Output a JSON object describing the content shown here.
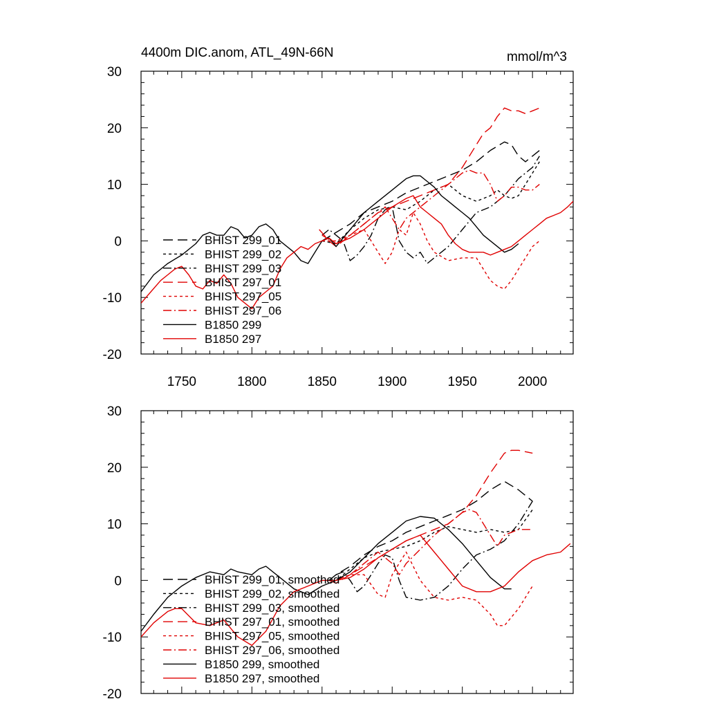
{
  "chart_data": [
    {
      "type": "line",
      "title": "4400m DIC.anom, ATL_49N-66N",
      "units": "mmol/m^3",
      "xlabel": "",
      "ylabel": "",
      "xlim": [
        1721,
        2029
      ],
      "ylim": [
        -20,
        30
      ],
      "xticks": [
        1750,
        1800,
        1850,
        1900,
        1950,
        2000
      ],
      "yticks": [
        30,
        20,
        10,
        0,
        -10,
        -20
      ],
      "legend_position": "left",
      "series": [
        {
          "name": "BHIST 299_01",
          "color": "#000000",
          "dash": "14 7",
          "x": [
            1850,
            1860,
            1870,
            1880,
            1890,
            1900,
            1910,
            1920,
            1930,
            1940,
            1950,
            1960,
            1970,
            1980,
            1985,
            1990,
            1995,
            2000,
            2005
          ],
          "y": [
            0,
            1.5,
            3,
            5,
            6,
            7,
            8.5,
            9.5,
            10.5,
            11.5,
            12.5,
            14,
            16,
            17.5,
            17,
            15,
            14,
            15,
            16
          ]
        },
        {
          "name": "BHIST 299_02",
          "color": "#000000",
          "dash": "4 4",
          "x": [
            1850,
            1860,
            1870,
            1880,
            1890,
            1900,
            1910,
            1920,
            1930,
            1940,
            1950,
            1960,
            1970,
            1975,
            1980,
            1985,
            1990,
            1995,
            2000,
            2005
          ],
          "y": [
            0,
            -0.5,
            2,
            4,
            5.5,
            6,
            5.5,
            7,
            9,
            10,
            8,
            7,
            8,
            9,
            8,
            7.5,
            8,
            10,
            12,
            14
          ]
        },
        {
          "name": "BHIST 299_03",
          "color": "#000000",
          "dash": "12 4 2 4",
          "x": [
            1850,
            1855,
            1860,
            1865,
            1870,
            1875,
            1880,
            1885,
            1890,
            1895,
            1900,
            1905,
            1910,
            1915,
            1920,
            1925,
            1930,
            1940,
            1950,
            1960,
            1970,
            1980,
            1990,
            2000,
            2005
          ],
          "y": [
            1,
            2,
            1,
            0,
            -3.5,
            -2.5,
            -1,
            1,
            4,
            5.5,
            6,
            0,
            -2,
            -3,
            -2,
            -4,
            -3,
            -1,
            2,
            5,
            6,
            8,
            11,
            13,
            15
          ]
        },
        {
          "name": "BHIST 297_01",
          "color": "#e00000",
          "dash": "14 7",
          "x": [
            1848,
            1855,
            1860,
            1870,
            1880,
            1890,
            1900,
            1910,
            1920,
            1930,
            1940,
            1950,
            1960,
            1965,
            1970,
            1975,
            1980,
            1985,
            1990,
            1995,
            2000,
            2005
          ],
          "y": [
            2,
            0,
            -1,
            1,
            3,
            5,
            6,
            7,
            8,
            9,
            10,
            13,
            17,
            19,
            20,
            22,
            23.5,
            23,
            23,
            22.5,
            23,
            23.5
          ]
        },
        {
          "name": "BHIST 297_05",
          "color": "#e00000",
          "dash": "4 4",
          "x": [
            1850,
            1860,
            1870,
            1880,
            1890,
            1895,
            1900,
            1905,
            1910,
            1915,
            1920,
            1925,
            1930,
            1940,
            1950,
            1960,
            1965,
            1970,
            1975,
            1980,
            1985,
            1990,
            1995,
            2000,
            2005
          ],
          "y": [
            0,
            0,
            1,
            2,
            -2,
            -4,
            -2,
            2,
            1,
            5,
            3,
            0,
            -2,
            -3.5,
            -3,
            -3,
            -5,
            -7,
            -8,
            -8.5,
            -7,
            -5,
            -3,
            -1,
            0
          ]
        },
        {
          "name": "BHIST 297_06",
          "color": "#e00000",
          "dash": "12 4 2 4",
          "x": [
            1850,
            1860,
            1870,
            1880,
            1890,
            1895,
            1900,
            1905,
            1910,
            1920,
            1930,
            1940,
            1950,
            1955,
            1960,
            1965,
            1970,
            1975,
            1980,
            1985,
            1990,
            1995,
            2000,
            2005
          ],
          "y": [
            1,
            -0.5,
            1,
            3,
            5,
            6,
            4,
            2,
            4,
            6,
            8,
            10,
            12,
            12.5,
            12,
            12,
            10,
            7,
            8,
            9.5,
            9.5,
            9,
            9,
            10
          ]
        },
        {
          "name": "B1850 299",
          "color": "#000000",
          "dash": "",
          "x": [
            1721,
            1730,
            1740,
            1750,
            1760,
            1765,
            1770,
            1775,
            1780,
            1785,
            1790,
            1795,
            1800,
            1805,
            1810,
            1815,
            1820,
            1825,
            1830,
            1835,
            1840,
            1845,
            1850,
            1855,
            1860,
            1865,
            1870,
            1880,
            1890,
            1900,
            1905,
            1910,
            1915,
            1920,
            1925,
            1930,
            1935,
            1940,
            1945,
            1950,
            1955,
            1960,
            1965,
            1970,
            1975,
            1980,
            1985,
            1990
          ],
          "y": [
            -9,
            -6,
            -4,
            -2.5,
            -0.5,
            1,
            1.5,
            1,
            1,
            2.5,
            2,
            0.5,
            1,
            2.5,
            3,
            2,
            0,
            -1,
            -2,
            -3.5,
            -4,
            -2,
            0,
            0.5,
            -1,
            0.5,
            2,
            5,
            7,
            9,
            10,
            11,
            11.5,
            11.5,
            10.5,
            9.5,
            8,
            7,
            6,
            5,
            4,
            2.5,
            1,
            0,
            -1,
            -2,
            -1.5,
            -0.5
          ]
        },
        {
          "name": "B1850 297",
          "color": "#e00000",
          "dash": "",
          "x": [
            1721,
            1728,
            1735,
            1740,
            1745,
            1750,
            1755,
            1760,
            1765,
            1770,
            1775,
            1780,
            1785,
            1790,
            1795,
            1800,
            1805,
            1810,
            1815,
            1820,
            1825,
            1830,
            1835,
            1840,
            1845,
            1850,
            1855,
            1860,
            1870,
            1880,
            1890,
            1900,
            1910,
            1915,
            1920,
            1925,
            1930,
            1935,
            1940,
            1945,
            1950,
            1955,
            1960,
            1965,
            1970,
            1975,
            1980,
            1985,
            1990,
            1995,
            2000,
            2005,
            2010,
            2015,
            2020,
            2025,
            2029
          ],
          "y": [
            -11,
            -9,
            -7,
            -6,
            -5,
            -4.5,
            -6,
            -8,
            -8.5,
            -7,
            -7.5,
            -6,
            -7.5,
            -10,
            -11,
            -12,
            -10,
            -9,
            -8,
            -5,
            -3,
            -2,
            -1,
            -1.5,
            -0.5,
            0,
            0.5,
            -0.5,
            0.5,
            2,
            4,
            6,
            7.5,
            8,
            6,
            5,
            4,
            3,
            1,
            -0.5,
            -1.5,
            -2,
            -2,
            -2,
            -2.5,
            -2,
            -1.5,
            -1,
            0,
            1,
            2,
            3,
            4,
            4.5,
            5,
            6,
            7
          ]
        }
      ]
    },
    {
      "type": "line",
      "title": "",
      "units": "",
      "xlabel": "",
      "ylabel": "",
      "xlim": [
        1721,
        2029
      ],
      "ylim": [
        -20,
        30
      ],
      "xticks": [
        1750,
        1800,
        1850,
        1900,
        1950,
        2000
      ],
      "yticks": [
        30,
        20,
        10,
        0,
        -10,
        -20
      ],
      "legend_position": "left",
      "series": [
        {
          "name": "BHIST 299_01, smoothed",
          "color": "#000000",
          "dash": "14 7",
          "x": [
            1855,
            1860,
            1870,
            1880,
            1890,
            1900,
            1910,
            1920,
            1930,
            1940,
            1950,
            1960,
            1970,
            1980,
            1990,
            2000
          ],
          "y": [
            0,
            1,
            2.5,
            4.5,
            6,
            7,
            8.5,
            9.5,
            10.5,
            11.5,
            12.5,
            14,
            16,
            17.5,
            16,
            14
          ]
        },
        {
          "name": "BHIST 299_02, smoothed",
          "color": "#000000",
          "dash": "4 4",
          "x": [
            1855,
            1860,
            1870,
            1880,
            1890,
            1900,
            1910,
            1920,
            1930,
            1940,
            1950,
            1960,
            1970,
            1980,
            1990,
            2000
          ],
          "y": [
            -0.5,
            0,
            2,
            4,
            5,
            5.5,
            6,
            7,
            8.5,
            9.5,
            9,
            8.5,
            9,
            8.5,
            9,
            12.5
          ]
        },
        {
          "name": "BHIST 299_03, smoothed",
          "color": "#000000",
          "dash": "12 4 2 4",
          "x": [
            1860,
            1865,
            1870,
            1875,
            1880,
            1890,
            1895,
            1900,
            1905,
            1910,
            1920,
            1930,
            1940,
            1950,
            1960,
            1970,
            1980,
            1990,
            2000
          ],
          "y": [
            1,
            1.5,
            0,
            -2,
            -1,
            3,
            4.5,
            4,
            0,
            -3,
            -3.5,
            -3,
            -1,
            2,
            4.5,
            5.5,
            7,
            10,
            14
          ]
        },
        {
          "name": "BHIST 297_01, smoothed",
          "color": "#e00000",
          "dash": "14 7",
          "x": [
            1855,
            1860,
            1870,
            1880,
            1890,
            1900,
            1910,
            1920,
            1930,
            1940,
            1950,
            1960,
            1970,
            1980,
            1985,
            1990,
            2000
          ],
          "y": [
            0,
            -0.5,
            1,
            2.5,
            4,
            5.5,
            7,
            8,
            9,
            10,
            12,
            15,
            19,
            22.5,
            23,
            23,
            22.5
          ]
        },
        {
          "name": "BHIST 297_05, smoothed",
          "color": "#e00000",
          "dash": "4 4",
          "x": [
            1860,
            1870,
            1880,
            1890,
            1895,
            1900,
            1910,
            1920,
            1930,
            1940,
            1950,
            1960,
            1970,
            1975,
            1980,
            1990,
            2000
          ],
          "y": [
            0,
            1,
            1,
            -2.5,
            -3,
            1,
            5,
            0,
            -3,
            -3.5,
            -3,
            -3.5,
            -6,
            -8,
            -8,
            -5,
            -1
          ]
        },
        {
          "name": "BHIST 297_06, smoothed",
          "color": "#e00000",
          "dash": "12 4 2 4",
          "x": [
            1860,
            1870,
            1880,
            1890,
            1900,
            1905,
            1910,
            1920,
            1930,
            1940,
            1950,
            1955,
            1960,
            1970,
            1975,
            1980,
            1990,
            2000
          ],
          "y": [
            0,
            1,
            3,
            5,
            3,
            1,
            3,
            5.5,
            8,
            10,
            12,
            12.5,
            12,
            8,
            6,
            8,
            9,
            9
          ]
        },
        {
          "name": "B1850 299, smoothed",
          "color": "#000000",
          "dash": "",
          "x": [
            1721,
            1730,
            1740,
            1750,
            1760,
            1770,
            1780,
            1785,
            1790,
            1800,
            1805,
            1810,
            1820,
            1830,
            1840,
            1850,
            1860,
            1870,
            1880,
            1890,
            1900,
            1910,
            1920,
            1930,
            1940,
            1950,
            1960,
            1970,
            1980,
            1985
          ],
          "y": [
            -9,
            -6,
            -3,
            -1,
            0.5,
            1.5,
            1,
            2,
            1.5,
            1,
            2,
            2.5,
            0.5,
            -1.5,
            -2.5,
            -1,
            0,
            1.5,
            4,
            6.5,
            8.5,
            10.5,
            11.3,
            11,
            9,
            6.5,
            3.5,
            0.5,
            -1.5,
            -1.5
          ]
        },
        {
          "name": "B1850 297, smoothed",
          "color": "#e00000",
          "dash": "",
          "x": [
            1721,
            1730,
            1740,
            1745,
            1750,
            1760,
            1770,
            1780,
            1790,
            1800,
            1810,
            1820,
            1830,
            1840,
            1850,
            1860,
            1870,
            1880,
            1890,
            1900,
            1910,
            1920,
            1930,
            1940,
            1950,
            1960,
            1970,
            1980,
            1990,
            2000,
            2010,
            2020,
            2027
          ],
          "y": [
            -10,
            -7.5,
            -5.5,
            -5,
            -5,
            -7.5,
            -8,
            -7,
            -10,
            -11.5,
            -9,
            -4.5,
            -2,
            -1,
            0,
            0,
            0.5,
            2,
            4,
            5.5,
            7,
            8,
            5,
            2,
            -1,
            -2,
            -2,
            -1,
            1.5,
            3.5,
            4.5,
            5,
            6.5
          ]
        }
      ]
    }
  ]
}
